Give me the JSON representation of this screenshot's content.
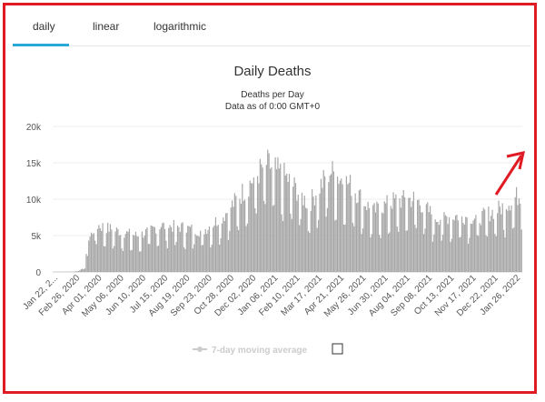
{
  "tabs": [
    {
      "label": "daily",
      "active": true
    },
    {
      "label": "linear",
      "active": false
    },
    {
      "label": "logarithmic",
      "active": false
    }
  ],
  "legend": {
    "label": "7-day moving average"
  },
  "colors": {
    "bars": "#a6a6a6",
    "accent": "#2aa8d8",
    "annotation": "#e01b24"
  },
  "chart_data": {
    "type": "bar",
    "title": "Daily Deaths",
    "subtitle": "Deaths per Day",
    "subtitle2": "Data as of 0:00 GMT+0",
    "xlabel": "",
    "ylabel": "",
    "ylim": [
      0,
      20000
    ],
    "yticks": [
      "0",
      "5k",
      "10k",
      "15k",
      "20k"
    ],
    "ytick_values": [
      0,
      5000,
      10000,
      15000,
      20000
    ],
    "grid": true,
    "x_tick_labels": [
      "Jan 22, 2...",
      "Feb 26, 2020",
      "Apr 01, 2020",
      "May 06, 2020",
      "Jun 10, 2020",
      "Jul 15, 2020",
      "Aug 19, 2020",
      "Sep 23, 2020",
      "Oct 28, 2020",
      "Dec 02, 2020",
      "Jan 06, 2021",
      "Feb 10, 2021",
      "Mar 17, 2021",
      "Apr 21, 2021",
      "May 26, 2021",
      "Jun 30, 2021",
      "Aug 04, 2021",
      "Sep 08, 2021",
      "Oct 13, 2021",
      "Nov 17, 2021",
      "Dec 22, 2021",
      "Jan 26, 2022"
    ],
    "period_averages": [
      0,
      200,
      6300,
      5500,
      4800,
      6200,
      6000,
      5400,
      7500,
      11000,
      14500,
      12500,
      9000,
      13500,
      11500,
      8000,
      9500,
      9800,
      7200,
      7500,
      7200,
      8500,
      10500
    ],
    "series": [
      {
        "name": "7-day moving average",
        "visible": false
      }
    ]
  }
}
